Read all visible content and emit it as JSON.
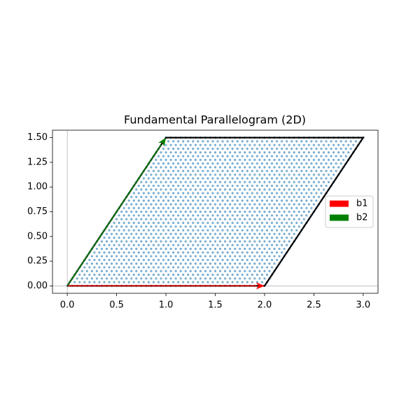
{
  "chart_data": {
    "type": "lattice",
    "title": "Fundamental Parallelogram (2D)",
    "xlim": [
      -0.15,
      3.15
    ],
    "ylim": [
      -0.075,
      1.575
    ],
    "xticks": [
      {
        "value": 0,
        "label": "0.0"
      },
      0.5,
      {
        "value": 1,
        "label": "1.0"
      },
      1.5,
      {
        "value": 2,
        "label": "2.0"
      },
      2.5,
      {
        "value": 3,
        "label": "3.0"
      }
    ],
    "yticks": [
      {
        "value": 0,
        "label": "0.00"
      },
      0.25,
      {
        "value": 0.5,
        "label": "0.50"
      },
      0.75,
      {
        "value": 1,
        "label": "1.00"
      },
      1.25,
      {
        "value": 1.5,
        "label": "1.50"
      }
    ],
    "reference_lines": {
      "x": 0,
      "y": 0
    },
    "lattice": {
      "color": "#1f77b4",
      "samples": [
        0,
        0.025,
        0.05,
        0.075,
        0.1,
        0.125,
        0.15,
        0.175,
        0.2,
        0.225,
        0.25,
        0.275,
        0.3,
        0.325,
        0.35,
        0.375,
        0.4,
        0.425,
        0.45,
        0.475,
        0.5,
        0.525,
        0.55,
        0.575,
        0.6,
        0.625,
        0.65,
        0.675,
        0.7,
        0.725,
        0.75,
        0.775,
        0.8,
        0.825,
        0.85,
        0.875,
        0.9,
        0.925,
        0.95,
        0.975,
        1
      ]
    },
    "outline": {
      "color": "black",
      "x": [
        0,
        2,
        3,
        1,
        0
      ],
      "y": [
        0,
        0,
        1.5,
        1.5,
        0
      ]
    },
    "vectors": [
      {
        "name": "b1",
        "color": "red",
        "x": 2,
        "y": 0
      },
      {
        "name": "b2",
        "color": "green",
        "x": 1,
        "y": 1.5
      }
    ],
    "legend": "center right"
  }
}
